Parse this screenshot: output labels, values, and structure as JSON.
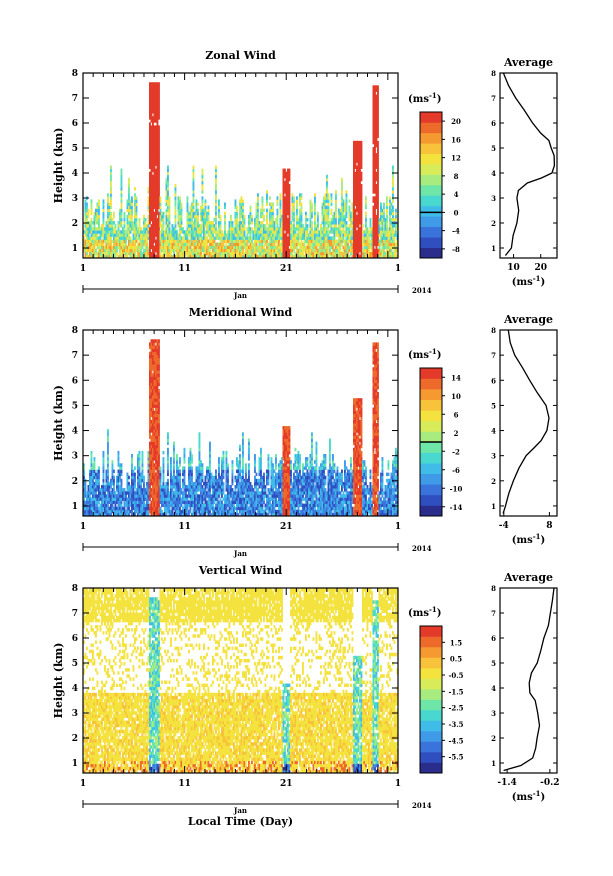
{
  "figure": {
    "xlabel": "Local Time (Day)",
    "month_label": "Jan",
    "year_label": "2014",
    "avg_title": "Average",
    "cbar_unit": "(ms",
    "unit_exp": "-1",
    "unit_close": ")",
    "avg_xlabel": "(ms"
  },
  "colors": {
    "colormap": [
      "#2b2d8c",
      "#2f4fc0",
      "#3b73dd",
      "#3f9ae8",
      "#3fbde8",
      "#48d8d0",
      "#6ee6a8",
      "#a8ec80",
      "#d8ec5a",
      "#f4e23e",
      "#f8c23a",
      "#f49a30",
      "#ee6a2a",
      "#e43a2a"
    ],
    "axis": "#000000"
  },
  "chart_data": [
    {
      "type": "heatmap",
      "title": "Zonal Wind",
      "ylabel": "Height (km)",
      "x_ticks": [
        "1",
        "11",
        "21",
        "1"
      ],
      "x_range_days": [
        1,
        32
      ],
      "y_range_km": [
        0.6,
        8
      ],
      "y_ticks": [
        "1",
        "2",
        "3",
        "4",
        "5",
        "6",
        "7",
        "8"
      ],
      "colorbar": {
        "range": [
          -10,
          22
        ],
        "ticks": [
          "20",
          "16",
          "12",
          "8",
          "4",
          "0",
          "-4",
          "-8"
        ],
        "marked": 0
      },
      "average": {
        "title": "Average",
        "x_ticks": [
          "10",
          "20"
        ],
        "x_range": [
          5,
          26
        ],
        "profile": [
          [
            0.7,
            7
          ],
          [
            1.0,
            9
          ],
          [
            1.5,
            10
          ],
          [
            2.0,
            11
          ],
          [
            2.5,
            12
          ],
          [
            3.0,
            11
          ],
          [
            3.3,
            12
          ],
          [
            3.6,
            15
          ],
          [
            3.8,
            20
          ],
          [
            4.0,
            24
          ],
          [
            4.3,
            25
          ],
          [
            4.7,
            25
          ],
          [
            5.0,
            24
          ],
          [
            5.3,
            23
          ],
          [
            5.6,
            20
          ],
          [
            6.0,
            17
          ],
          [
            6.5,
            14
          ],
          [
            7.0,
            11
          ],
          [
            7.5,
            8
          ],
          [
            8.0,
            6
          ]
        ]
      }
    },
    {
      "type": "heatmap",
      "title": "Meridional Wind",
      "ylabel": "Height (km)",
      "x_ticks": [
        "1",
        "11",
        "21",
        "1"
      ],
      "x_range_days": [
        1,
        32
      ],
      "y_range_km": [
        0.6,
        8
      ],
      "y_ticks": [
        "1",
        "2",
        "3",
        "4",
        "5",
        "6",
        "7",
        "8"
      ],
      "colorbar": {
        "range": [
          -16,
          16
        ],
        "ticks": [
          "14",
          "10",
          "6",
          "2",
          "-2",
          "-6",
          "-10",
          "-14"
        ],
        "marked": 0
      },
      "average": {
        "title": "Average",
        "x_ticks": [
          "-4",
          "8"
        ],
        "x_range": [
          -5,
          10
        ],
        "profile": [
          [
            0.7,
            -4
          ],
          [
            1.0,
            -3.5
          ],
          [
            1.5,
            -2.5
          ],
          [
            2.0,
            -1.5
          ],
          [
            2.5,
            0
          ],
          [
            3.0,
            2
          ],
          [
            3.3,
            4
          ],
          [
            3.6,
            6
          ],
          [
            4.0,
            7.5
          ],
          [
            4.5,
            8
          ],
          [
            5.0,
            7
          ],
          [
            5.5,
            5
          ],
          [
            6.0,
            3
          ],
          [
            6.5,
            1
          ],
          [
            7.0,
            -1
          ],
          [
            7.5,
            -2.5
          ],
          [
            8.0,
            -3
          ]
        ]
      }
    },
    {
      "type": "heatmap",
      "title": "Vertical Wind",
      "ylabel": "Height (km)",
      "x_ticks": [
        "1",
        "11",
        "21",
        "1"
      ],
      "x_range_days": [
        1,
        32
      ],
      "y_range_km": [
        0.6,
        8
      ],
      "y_ticks": [
        "1",
        "2",
        "3",
        "4",
        "5",
        "6",
        "7",
        "8"
      ],
      "colorbar": {
        "range": [
          -6.5,
          2.5
        ],
        "ticks": [
          "1.5",
          "0.5",
          "-0.5",
          "-1.5",
          "-2.5",
          "-3.5",
          "-4.5",
          "-5.5"
        ],
        "marked": null
      },
      "average": {
        "title": "Average",
        "x_ticks": [
          "-1.4",
          "-0.2"
        ],
        "x_range": [
          -1.6,
          0
        ],
        "profile": [
          [
            0.7,
            -1.5
          ],
          [
            0.9,
            -1.0
          ],
          [
            1.2,
            -0.7
          ],
          [
            1.6,
            -0.6
          ],
          [
            2.0,
            -0.55
          ],
          [
            2.5,
            -0.5
          ],
          [
            3.0,
            -0.55
          ],
          [
            3.5,
            -0.6
          ],
          [
            3.8,
            -0.75
          ],
          [
            4.2,
            -0.8
          ],
          [
            4.6,
            -0.7
          ],
          [
            5.0,
            -0.55
          ],
          [
            5.5,
            -0.45
          ],
          [
            6.0,
            -0.35
          ],
          [
            6.5,
            -0.25
          ],
          [
            7.0,
            -0.18
          ],
          [
            7.5,
            -0.12
          ],
          [
            8.0,
            -0.1
          ]
        ]
      }
    }
  ]
}
